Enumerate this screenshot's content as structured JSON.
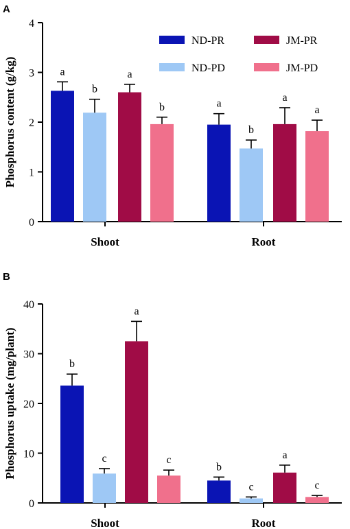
{
  "chart_data": [
    {
      "panel": "A",
      "type": "bar",
      "ylabel": "Phosphorus content (g/kg)",
      "ylim": [
        0,
        4
      ],
      "yticks": [
        0,
        1,
        2,
        3,
        4
      ],
      "categories": [
        "Shoot",
        "Root"
      ],
      "legend": "top-right",
      "series": [
        {
          "name": "ND-PR",
          "color": "#0a14b4",
          "values": [
            2.63,
            1.95
          ],
          "errors": [
            0.18,
            0.22
          ],
          "letters": [
            "a",
            "a"
          ]
        },
        {
          "name": "ND-PD",
          "color": "#9ec8f5",
          "values": [
            2.19,
            1.47
          ],
          "errors": [
            0.27,
            0.17
          ],
          "letters": [
            "b",
            "b"
          ]
        },
        {
          "name": "JM-PR",
          "color": "#a00c46",
          "values": [
            2.6,
            1.96
          ],
          "errors": [
            0.16,
            0.33
          ],
          "letters": [
            "a",
            "a"
          ]
        },
        {
          "name": "JM-PD",
          "color": "#f0708c",
          "values": [
            1.96,
            1.82
          ],
          "errors": [
            0.14,
            0.22
          ],
          "letters": [
            "b",
            "a"
          ]
        }
      ]
    },
    {
      "panel": "B",
      "type": "bar",
      "ylabel": "Phosphorus uptake (mg/plant)",
      "ylim": [
        0,
        40
      ],
      "yticks": [
        0,
        10,
        20,
        30,
        40
      ],
      "categories": [
        "Shoot",
        "Root"
      ],
      "legend": "none",
      "series": [
        {
          "name": "ND-PR",
          "color": "#0a14b4",
          "values": [
            23.6,
            4.5
          ],
          "errors": [
            2.3,
            0.7
          ],
          "letters": [
            "b",
            "b"
          ]
        },
        {
          "name": "ND-PD",
          "color": "#9ec8f5",
          "values": [
            5.9,
            0.9
          ],
          "errors": [
            1.0,
            0.3
          ],
          "letters": [
            "c",
            "c"
          ]
        },
        {
          "name": "JM-PR",
          "color": "#a00c46",
          "values": [
            32.5,
            6.1
          ],
          "errors": [
            4.0,
            1.5
          ],
          "letters": [
            "a",
            "a"
          ]
        },
        {
          "name": "JM-PD",
          "color": "#f0708c",
          "values": [
            5.5,
            1.2
          ],
          "errors": [
            1.1,
            0.3
          ],
          "letters": [
            "c",
            "c"
          ]
        }
      ]
    }
  ]
}
